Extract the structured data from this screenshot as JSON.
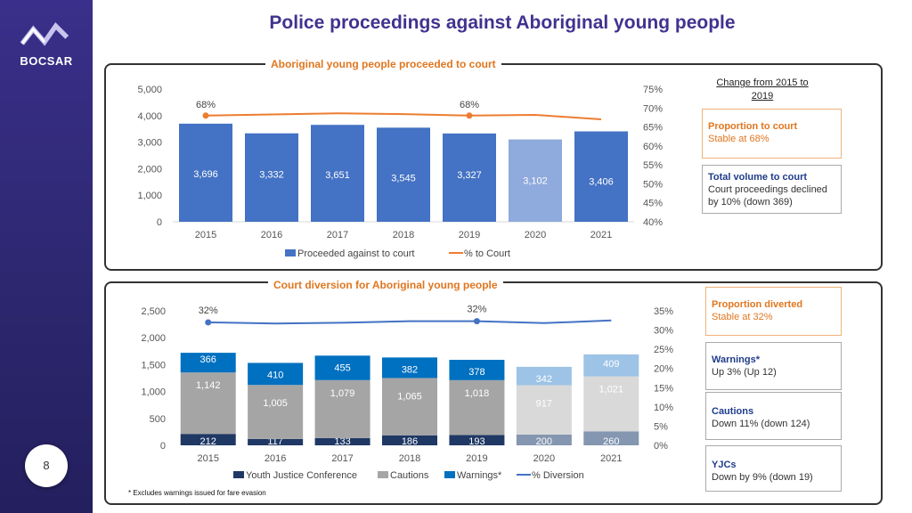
{
  "brand": "BOCSAR",
  "page_number": "8",
  "title": "Police proceedings against Aboriginal young people",
  "footnote": "* Excludes warnings issued for fare evasion",
  "change_label": "Change from 2015 to 2019",
  "callouts_top": [
    {
      "title": "Proportion to court",
      "body": "Stable at 68%",
      "style": "orange"
    },
    {
      "title": "Total volume to court",
      "body": "Court proceedings declined by 10% (down 369)",
      "style": "blue"
    }
  ],
  "callouts_bottom": [
    {
      "title": "Proportion diverted",
      "body": "Stable at 32%",
      "style": "orange"
    },
    {
      "title": "Warnings*",
      "body": "Up 3% (Up 12)",
      "style": "blue"
    },
    {
      "title": "Cautions",
      "body": "Down 11% (down 124)",
      "style": "blue"
    },
    {
      "title": "YJCs",
      "body": "Down by 9% (down 19)",
      "style": "blue"
    }
  ],
  "chart_data": [
    {
      "type": "bar",
      "title": "Aboriginal young people proceeded to court",
      "categories": [
        "2015",
        "2016",
        "2017",
        "2018",
        "2019",
        "2020",
        "2021"
      ],
      "series": [
        {
          "name": "Proceeded against to court",
          "values": [
            3696,
            3332,
            3651,
            3545,
            3327,
            3102,
            3406
          ],
          "color": "#4472c4",
          "light_color": "#8faadc"
        },
        {
          "name": "% to Court",
          "type": "line",
          "axis": "right",
          "values": [
            68,
            68.3,
            68.6,
            68.4,
            68,
            68.2,
            67
          ],
          "color": "#ed7d31"
        }
      ],
      "point_labels": [
        {
          "index": 0,
          "text": "68%"
        },
        {
          "index": 4,
          "text": "68%"
        }
      ],
      "y_left": {
        "min": 0,
        "max": 5000,
        "ticks": [
          "0",
          "1,000",
          "2,000",
          "3,000",
          "4,000",
          "5,000"
        ]
      },
      "y_right": {
        "min": 40,
        "max": 75,
        "ticks": [
          "40%",
          "45%",
          "50%",
          "55%",
          "60%",
          "65%",
          "70%",
          "75%"
        ]
      },
      "legend": "bottom"
    },
    {
      "type": "bar",
      "stacked": true,
      "title": "Court diversion for Aboriginal young people",
      "categories": [
        "2015",
        "2016",
        "2017",
        "2018",
        "2019",
        "2020",
        "2021"
      ],
      "series": [
        {
          "name": "Youth Justice Conference",
          "values": [
            212,
            117,
            133,
            186,
            193,
            200,
            260
          ],
          "color": "#1f3864",
          "light_color": "#8496b0"
        },
        {
          "name": "Cautions",
          "values": [
            1142,
            1005,
            1079,
            1065,
            1018,
            917,
            1021
          ],
          "color": "#a5a5a5",
          "light_color": "#d9d9d9"
        },
        {
          "name": "Warnings*",
          "values": [
            366,
            410,
            455,
            382,
            378,
            342,
            409
          ],
          "color": "#0070c0",
          "light_color": "#9dc3e6"
        },
        {
          "name": "% Diversion",
          "type": "line",
          "axis": "right",
          "values": [
            32,
            31.7,
            31.9,
            32.3,
            32.3,
            31.8,
            32.5
          ],
          "color": "#4472c4"
        }
      ],
      "point_labels": [
        {
          "index": 0,
          "text": "32%"
        },
        {
          "index": 4,
          "text": "32%"
        }
      ],
      "y_left": {
        "min": 0,
        "max": 2500,
        "ticks": [
          "0",
          "500",
          "1,000",
          "1,500",
          "2,000",
          "2,500"
        ]
      },
      "y_right": {
        "min": 0,
        "max": 35,
        "ticks": [
          "0%",
          "5%",
          "10%",
          "15%",
          "20%",
          "25%",
          "30%",
          "35%"
        ]
      },
      "legend": "bottom"
    }
  ]
}
